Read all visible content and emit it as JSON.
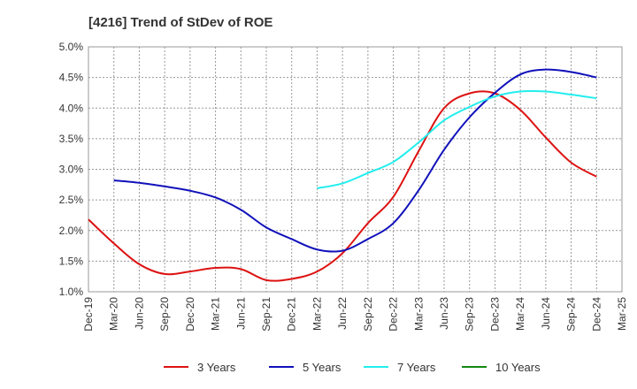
{
  "chart_data": {
    "type": "line",
    "title": "[4216]  Trend of StDev of ROE",
    "x_labels": [
      "Dec-19",
      "Mar-20",
      "Jun-20",
      "Sep-20",
      "Dec-20",
      "Mar-21",
      "Jun-21",
      "Sep-21",
      "Dec-21",
      "Mar-22",
      "Jun-22",
      "Sep-22",
      "Dec-22",
      "Mar-23",
      "Jun-23",
      "Sep-23",
      "Dec-23",
      "Mar-24",
      "Jun-24",
      "Sep-24",
      "Dec-24",
      "Mar-25"
    ],
    "y_ticks": [
      "1.0%",
      "1.5%",
      "2.0%",
      "2.5%",
      "3.0%",
      "3.5%",
      "4.0%",
      "4.5%",
      "5.0%"
    ],
    "ylim": [
      1.0,
      5.0
    ],
    "grid": true,
    "legend_position": "bottom",
    "series": [
      {
        "name": "3 Years",
        "color": "#dd1111",
        "values": [
          2.18,
          1.79,
          1.45,
          1.29,
          1.33,
          1.39,
          1.37,
          1.19,
          1.21,
          1.33,
          1.63,
          2.12,
          2.55,
          3.3,
          4.0,
          4.24,
          4.24,
          3.97,
          3.52,
          3.11,
          2.88,
          null
        ]
      },
      {
        "name": "5 Years",
        "color": "#1111bb",
        "values": [
          null,
          2.82,
          2.78,
          2.72,
          2.65,
          2.54,
          2.34,
          2.05,
          1.86,
          1.69,
          1.67,
          1.86,
          2.12,
          2.66,
          3.32,
          3.85,
          4.25,
          4.55,
          4.63,
          4.59,
          4.5,
          null
        ]
      },
      {
        "name": "7 Years",
        "color": "#22eeee",
        "values": [
          null,
          null,
          null,
          null,
          null,
          null,
          null,
          null,
          null,
          2.69,
          2.77,
          2.94,
          3.12,
          3.44,
          3.8,
          4.02,
          4.19,
          4.27,
          4.27,
          4.22,
          4.16,
          null
        ]
      },
      {
        "name": "10 Years",
        "color": "#118811",
        "values": [
          null,
          null,
          null,
          null,
          null,
          null,
          null,
          null,
          null,
          null,
          null,
          null,
          null,
          null,
          null,
          null,
          null,
          null,
          null,
          null,
          null,
          null
        ]
      }
    ]
  }
}
